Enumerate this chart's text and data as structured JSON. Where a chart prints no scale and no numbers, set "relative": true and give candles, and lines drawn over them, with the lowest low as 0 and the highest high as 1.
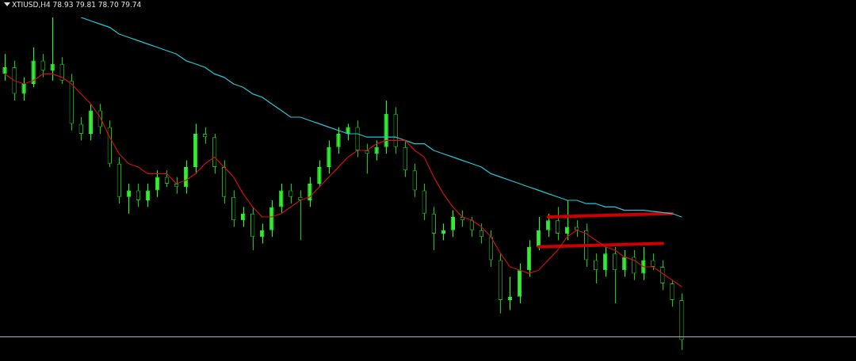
{
  "chart_data": {
    "type": "candlestick",
    "title": "XTIUSD,H4 78.93 79.81 78.70 79.74",
    "relative": true,
    "colors": [
      "#33ee33",
      "#22bb22",
      "#33ee33",
      "#33ee33",
      "#22bb22",
      "#33ee33",
      "#22bb22",
      "#22bb22",
      "#22bb22",
      "#33ee33",
      "#22bb22",
      "#22bb22",
      "#22bb22",
      "#33ee33",
      "#22bb22",
      "#33ee33",
      "#33ee33",
      "#22bb22",
      "#22bb22",
      "#33ee33",
      "#33ee33",
      "#22bb22",
      "#22bb22",
      "#22bb22",
      "#22bb22",
      "#33ee33",
      "#22bb22",
      "#33ee33",
      "#33ee33",
      "#33ee33",
      "#22bb22",
      "#22bb22",
      "#33ee33",
      "#33ee33",
      "#33ee33",
      "#33ee33",
      "#33ee33",
      "#22bb22",
      "#22bb22",
      "#33ee33",
      "#33ee33",
      "#22bb22",
      "#22bb22",
      "#22bb22",
      "#22bb22",
      "#22bb22",
      "#33ee33",
      "#33ee33",
      "#22bb22",
      "#22bb22",
      "#22bb22",
      "#22bb22",
      "#22bb22",
      "#33ee33",
      "#33ee33",
      "#33ee33",
      "#33ee33",
      "#33ee33",
      "#22bb22",
      "#33ee33",
      "#22bb22",
      "#22bb22",
      "#22bb22",
      "#33ee33",
      "#22bb22",
      "#33ee33",
      "#22bb22",
      "#33ee33",
      "#22bb22",
      "#22bb22",
      "#22bb22",
      "#22bb22"
    ],
    "categories": [
      null,
      null,
      null,
      null,
      null,
      null,
      null,
      null,
      null,
      null,
      null,
      null,
      null,
      null,
      null,
      null,
      null,
      null,
      null,
      null,
      null,
      null,
      null,
      null,
      null,
      null,
      null,
      null,
      null,
      null,
      null,
      null,
      null,
      null,
      null,
      null,
      null,
      null,
      null,
      null,
      null,
      null,
      null,
      null,
      null,
      null,
      null,
      null,
      null,
      null,
      null,
      null,
      null,
      null,
      null,
      null,
      null,
      null,
      null,
      null,
      null,
      null,
      null,
      null,
      null,
      null,
      null,
      null,
      null,
      null,
      null,
      null
    ],
    "ohlc": [
      [
        0.83,
        0.89,
        0.81,
        0.85
      ],
      [
        0.85,
        0.87,
        0.75,
        0.77
      ],
      [
        0.77,
        0.82,
        0.75,
        0.8
      ],
      [
        0.8,
        0.91,
        0.79,
        0.87
      ],
      [
        0.87,
        0.89,
        0.82,
        0.84
      ],
      [
        0.84,
        1.0,
        0.81,
        0.86
      ],
      [
        0.86,
        0.88,
        0.8,
        0.81
      ],
      [
        0.81,
        0.83,
        0.66,
        0.68
      ],
      [
        0.68,
        0.7,
        0.63,
        0.65
      ],
      [
        0.65,
        0.74,
        0.63,
        0.72
      ],
      [
        0.72,
        0.74,
        0.65,
        0.67
      ],
      [
        0.67,
        0.69,
        0.55,
        0.56
      ],
      [
        0.56,
        0.58,
        0.44,
        0.46
      ],
      [
        0.46,
        0.5,
        0.41,
        0.48
      ],
      [
        0.48,
        0.5,
        0.43,
        0.45
      ],
      [
        0.45,
        0.5,
        0.43,
        0.48
      ],
      [
        0.48,
        0.54,
        0.46,
        0.52
      ],
      [
        0.52,
        0.54,
        0.49,
        0.5
      ],
      [
        0.5,
        0.52,
        0.47,
        0.49
      ],
      [
        0.49,
        0.57,
        0.47,
        0.55
      ],
      [
        0.55,
        0.68,
        0.53,
        0.65
      ],
      [
        0.65,
        0.67,
        0.62,
        0.64
      ],
      [
        0.64,
        0.65,
        0.53,
        0.55
      ],
      [
        0.55,
        0.57,
        0.44,
        0.46
      ],
      [
        0.46,
        0.48,
        0.37,
        0.39
      ],
      [
        0.39,
        0.43,
        0.37,
        0.41
      ],
      [
        0.41,
        0.43,
        0.3,
        0.34
      ],
      [
        0.34,
        0.38,
        0.32,
        0.36
      ],
      [
        0.36,
        0.45,
        0.34,
        0.43
      ],
      [
        0.43,
        0.5,
        0.41,
        0.48
      ],
      [
        0.48,
        0.5,
        0.44,
        0.46
      ],
      [
        0.46,
        0.48,
        0.33,
        0.45
      ],
      [
        0.45,
        0.52,
        0.43,
        0.5
      ],
      [
        0.5,
        0.57,
        0.49,
        0.55
      ],
      [
        0.55,
        0.63,
        0.53,
        0.61
      ],
      [
        0.61,
        0.67,
        0.59,
        0.65
      ],
      [
        0.65,
        0.68,
        0.63,
        0.67
      ],
      [
        0.67,
        0.69,
        0.58,
        0.6
      ],
      [
        0.6,
        0.62,
        0.53,
        0.59
      ],
      [
        0.59,
        0.63,
        0.57,
        0.61
      ],
      [
        0.61,
        0.75,
        0.59,
        0.71
      ],
      [
        0.71,
        0.73,
        0.59,
        0.61
      ],
      [
        0.61,
        0.63,
        0.52,
        0.54
      ],
      [
        0.54,
        0.56,
        0.46,
        0.48
      ],
      [
        0.48,
        0.5,
        0.39,
        0.41
      ],
      [
        0.41,
        0.43,
        0.3,
        0.35
      ],
      [
        0.35,
        0.38,
        0.33,
        0.36
      ],
      [
        0.36,
        0.42,
        0.34,
        0.4
      ],
      [
        0.4,
        0.42,
        0.37,
        0.39
      ],
      [
        0.39,
        0.4,
        0.34,
        0.36
      ],
      [
        0.36,
        0.38,
        0.32,
        0.34
      ],
      [
        0.34,
        0.36,
        0.25,
        0.27
      ],
      [
        0.27,
        0.29,
        0.11,
        0.15
      ],
      [
        0.15,
        0.22,
        0.12,
        0.16
      ],
      [
        0.16,
        0.26,
        0.14,
        0.24
      ],
      [
        0.24,
        0.33,
        0.22,
        0.31
      ],
      [
        0.31,
        0.4,
        0.3,
        0.36
      ],
      [
        0.36,
        0.41,
        0.34,
        0.39
      ],
      [
        0.39,
        0.43,
        0.33,
        0.35
      ],
      [
        0.35,
        0.45,
        0.33,
        0.37
      ],
      [
        0.37,
        0.39,
        0.34,
        0.36
      ],
      [
        0.36,
        0.38,
        0.25,
        0.27
      ],
      [
        0.27,
        0.29,
        0.2,
        0.24
      ],
      [
        0.24,
        0.31,
        0.22,
        0.29
      ],
      [
        0.29,
        0.31,
        0.14,
        0.24
      ],
      [
        0.24,
        0.3,
        0.22,
        0.28
      ],
      [
        0.28,
        0.3,
        0.21,
        0.23
      ],
      [
        0.23,
        0.31,
        0.21,
        0.27
      ],
      [
        0.27,
        0.29,
        0.24,
        0.25
      ],
      [
        0.25,
        0.27,
        0.18,
        0.2
      ],
      [
        0.2,
        0.21,
        0.13,
        0.15
      ],
      [
        0.15,
        0.17,
        0,
        0.03
      ]
    ],
    "series": [
      {
        "type": "line",
        "color": "#cc1111",
        "values": [
          0.83,
          0.81,
          0.8,
          0.81,
          0.83,
          0.83,
          0.82,
          0.8,
          0.77,
          0.74,
          0.7,
          0.64,
          0.59,
          0.56,
          0.55,
          0.53,
          0.53,
          0.53,
          0.5,
          0.51,
          0.53,
          0.56,
          0.58,
          0.55,
          0.52,
          0.47,
          0.43,
          0.4,
          0.4,
          0.41,
          0.43,
          0.45,
          0.46,
          0.49,
          0.52,
          0.55,
          0.58,
          0.6,
          0.6,
          0.62,
          0.63,
          0.63,
          0.63,
          0.6,
          0.58,
          0.52,
          0.47,
          0.43,
          0.4,
          0.39,
          0.37,
          0.34,
          0.29,
          0.25,
          0.24,
          0.23,
          0.24,
          0.27,
          0.3,
          0.34,
          0.36,
          0.35,
          0.33,
          0.31,
          0.3,
          0.28,
          0.27,
          0.25,
          0.25,
          0.23,
          0.21,
          0.19
        ]
      },
      {
        "type": "line",
        "color": "#22c8d8",
        "values": [
          null,
          null,
          null,
          null,
          null,
          null,
          null,
          null,
          1.0,
          0.99,
          0.98,
          0.97,
          0.95,
          0.94,
          0.93,
          0.92,
          0.91,
          0.9,
          0.89,
          0.87,
          0.86,
          0.85,
          0.83,
          0.82,
          0.8,
          0.79,
          0.77,
          0.76,
          0.74,
          0.72,
          0.7,
          0.7,
          0.69,
          0.68,
          0.67,
          0.66,
          0.65,
          0.65,
          0.64,
          0.64,
          0.64,
          0.64,
          0.63,
          0.62,
          0.62,
          0.6,
          0.59,
          0.58,
          0.57,
          0.56,
          0.55,
          0.53,
          0.52,
          0.51,
          0.5,
          0.49,
          0.48,
          0.47,
          0.46,
          0.45,
          0.45,
          0.44,
          0.44,
          0.43,
          0.43,
          0.42,
          0.42,
          0.42,
          null,
          null,
          0.41,
          0.4
        ]
      },
      {
        "type": "line",
        "color": "#cc0000",
        "values": [
          null,
          null,
          null,
          null,
          null,
          null,
          null,
          null,
          null,
          null,
          null,
          null,
          null,
          null,
          null,
          null,
          null,
          null,
          null,
          null,
          null,
          null,
          null,
          null,
          null,
          null,
          null,
          null,
          null,
          null,
          null,
          null,
          null,
          null,
          null,
          null,
          null,
          null,
          null,
          null,
          null,
          null,
          null,
          null,
          null,
          null,
          null,
          null,
          null,
          null,
          null,
          null,
          null,
          null,
          null,
          null,
          null,
          0.4,
          null,
          null,
          null,
          null,
          null,
          null,
          null,
          null,
          null,
          null,
          null,
          null,
          0.41,
          null
        ]
      },
      {
        "type": "line",
        "color": "#cc0000",
        "values": [
          null,
          null,
          null,
          null,
          null,
          null,
          null,
          null,
          null,
          null,
          null,
          null,
          null,
          null,
          null,
          null,
          null,
          null,
          null,
          null,
          null,
          null,
          null,
          null,
          null,
          null,
          null,
          null,
          null,
          null,
          null,
          null,
          null,
          null,
          null,
          null,
          null,
          null,
          null,
          null,
          null,
          null,
          null,
          null,
          null,
          null,
          null,
          null,
          null,
          null,
          null,
          null,
          null,
          null,
          null,
          null,
          0.31,
          null,
          null,
          null,
          null,
          null,
          null,
          null,
          null,
          null,
          null,
          null,
          null,
          0.32,
          null,
          null
        ]
      }
    ],
    "ref_lines": [
      {
        "axis": "y",
        "value": 0.04,
        "color": "#a8b4c8"
      }
    ]
  }
}
